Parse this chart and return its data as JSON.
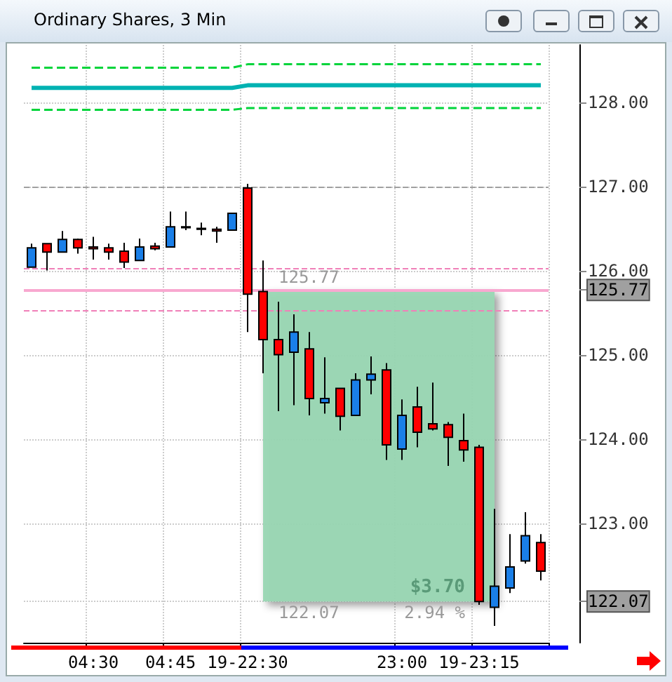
{
  "chart_data": {
    "type": "candlestick",
    "title": "Ordinary Shares, 3 Min",
    "categories": [
      null,
      null,
      null,
      null,
      "04:30",
      null,
      null,
      null,
      null,
      "04:45",
      null,
      null,
      null,
      null,
      "19-22:30",
      null,
      null,
      null,
      null,
      null,
      null,
      null,
      null,
      null,
      "23:00",
      null,
      null,
      null,
      null,
      "19-23:15",
      null,
      null,
      null,
      null
    ],
    "ohlc": [
      [
        126.04,
        126.32,
        126.04,
        126.27
      ],
      [
        126.32,
        126.32,
        126.0,
        126.22
      ],
      [
        126.22,
        126.47,
        126.22,
        126.37
      ],
      [
        126.37,
        126.38,
        126.2,
        126.27
      ],
      [
        126.28,
        126.4,
        126.13,
        126.26
      ],
      [
        126.27,
        126.32,
        126.13,
        126.22
      ],
      [
        126.23,
        126.33,
        126.03,
        126.1
      ],
      [
        126.12,
        126.38,
        126.12,
        126.28
      ],
      [
        126.29,
        126.33,
        126.24,
        126.26
      ],
      [
        126.28,
        126.7,
        126.28,
        126.52
      ],
      [
        126.51,
        126.7,
        126.48,
        126.52
      ],
      [
        126.5,
        126.57,
        126.42,
        126.49
      ],
      [
        126.49,
        126.52,
        126.33,
        126.47
      ],
      [
        126.48,
        126.68,
        126.48,
        126.68
      ],
      [
        126.98,
        127.03,
        125.27,
        125.72
      ],
      [
        125.75,
        126.12,
        124.78,
        125.18
      ],
      [
        125.18,
        125.63,
        124.33,
        125.0
      ],
      [
        125.03,
        125.48,
        124.4,
        125.27
      ],
      [
        125.07,
        125.27,
        124.28,
        124.48
      ],
      [
        124.43,
        124.97,
        124.3,
        124.48
      ],
      [
        124.6,
        124.6,
        124.1,
        124.27
      ],
      [
        124.28,
        124.78,
        124.28,
        124.7
      ],
      [
        124.7,
        124.98,
        124.53,
        124.77
      ],
      [
        124.82,
        124.9,
        123.75,
        123.93
      ],
      [
        123.88,
        124.47,
        123.75,
        124.28
      ],
      [
        124.38,
        124.62,
        123.9,
        124.08
      ],
      [
        124.18,
        124.67,
        124.1,
        124.12
      ],
      [
        124.17,
        124.2,
        123.68,
        124.02
      ],
      [
        123.98,
        124.3,
        123.73,
        123.87
      ],
      [
        123.9,
        123.93,
        122.03,
        122.07
      ],
      [
        122.0,
        123.17,
        121.78,
        122.25
      ],
      [
        122.23,
        122.87,
        122.17,
        122.48
      ],
      [
        122.55,
        123.13,
        122.52,
        122.85
      ],
      [
        122.77,
        122.87,
        122.32,
        122.43
      ]
    ],
    "colors": [
      "#1a7fe8",
      "#ff0000",
      "#1a7fe8",
      "#ff0000",
      "#ff0000",
      "#ff0000",
      "#ff0000",
      "#1a7fe8",
      "#ff0000",
      "#1a7fe8",
      "#000000",
      "#000000",
      "#ff0000",
      "#1a7fe8",
      "#ff0000",
      "#ff0000",
      "#ff0000",
      "#1a7fe8",
      "#ff0000",
      "#1a7fe8",
      "#ff0000",
      "#1a7fe8",
      "#1a7fe8",
      "#ff0000",
      "#1a7fe8",
      "#ff0000",
      "#ff0000",
      "#ff0000",
      "#ff0000",
      "#ff0000",
      "#1a7fe8",
      "#1a7fe8",
      "#1a7fe8",
      "#ff0000"
    ],
    "series": [
      {
        "type": "line",
        "color": "#00d43a",
        "line_style": "dashed",
        "values": [
          128.41,
          128.41,
          128.41,
          128.41,
          128.41,
          128.41,
          128.41,
          128.41,
          128.41,
          128.41,
          128.41,
          128.41,
          128.41,
          128.41,
          128.45,
          128.45,
          128.45,
          128.45,
          128.45,
          128.45,
          128.45,
          128.45,
          128.45,
          128.45,
          128.45,
          128.45,
          128.45,
          128.45,
          128.45,
          128.45,
          128.45,
          128.45,
          128.45,
          128.45
        ]
      },
      {
        "type": "line",
        "color": "#00b2b2",
        "line_style": "solid",
        "values": [
          128.17,
          128.17,
          128.17,
          128.17,
          128.17,
          128.17,
          128.17,
          128.17,
          128.17,
          128.17,
          128.17,
          128.17,
          128.17,
          128.17,
          128.2,
          128.2,
          128.2,
          128.2,
          128.2,
          128.2,
          128.2,
          128.2,
          128.2,
          128.2,
          128.2,
          128.2,
          128.2,
          128.2,
          128.2,
          128.2,
          128.2,
          128.2,
          128.2,
          128.2
        ]
      },
      {
        "type": "line",
        "color": "#00d43a",
        "line_style": "dashed",
        "values": [
          127.91,
          127.91,
          127.91,
          127.91,
          127.91,
          127.91,
          127.91,
          127.91,
          127.91,
          127.91,
          127.91,
          127.91,
          127.91,
          127.91,
          127.93,
          127.93,
          127.93,
          127.93,
          127.93,
          127.93,
          127.93,
          127.93,
          127.93,
          127.93,
          127.93,
          127.93,
          127.93,
          127.93,
          127.93,
          127.93,
          127.93,
          127.93,
          127.93,
          127.93
        ]
      }
    ],
    "ref_lines": [
      {
        "axis": "y",
        "value": 127.0,
        "color": "#a0a0a0",
        "line_style": "dashed"
      },
      {
        "axis": "y",
        "value": 126.03,
        "color": "#f080b8",
        "line_style": "dashed"
      },
      {
        "axis": "y",
        "value": 125.77,
        "color": "#f8a8d0",
        "line_style": "solid"
      },
      {
        "axis": "y",
        "value": 125.53,
        "color": "#f080b8",
        "line_style": "dashed"
      }
    ],
    "bands": [
      {
        "axis": "y",
        "from": 122.07,
        "to": 125.77,
        "color": "#99d6b3"
      }
    ],
    "annotations": [
      "125.77",
      "122.07",
      "$3.70",
      "2.94 %"
    ],
    "ylim": [
      121.58,
      128.68
    ],
    "yticks": [
      {
        "value": 122.07,
        "label": "122.07"
      },
      {
        "value": 123,
        "label": "123.00"
      },
      {
        "value": 124,
        "label": "124.00"
      },
      {
        "value": 125,
        "label": "125.00"
      },
      {
        "value": 125.77,
        "label": "125.77"
      },
      {
        "value": 126,
        "label": "126.00"
      },
      {
        "value": 127,
        "label": "127.00"
      },
      {
        "value": 128,
        "label": "128.00"
      }
    ],
    "grid": true
  }
}
